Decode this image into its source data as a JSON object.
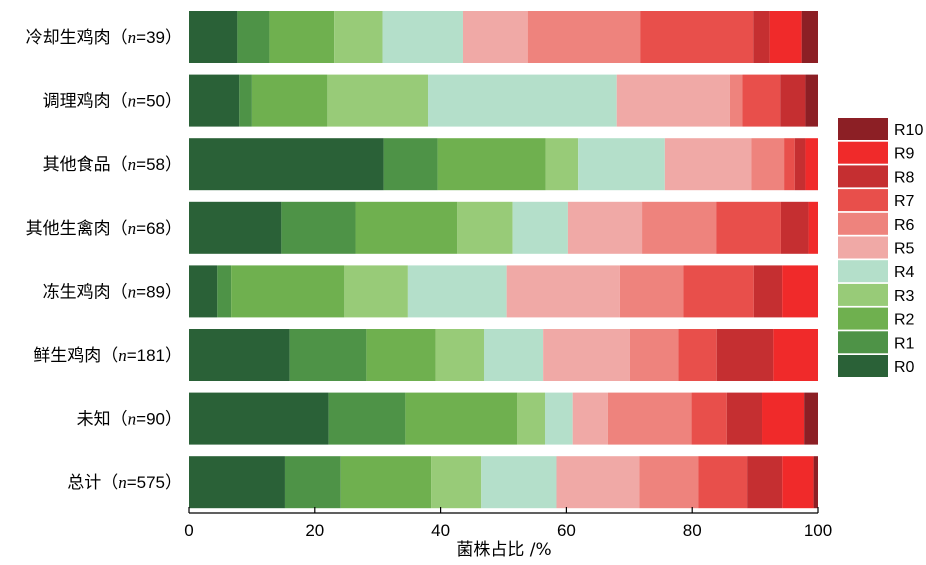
{
  "chart_data": {
    "type": "bar",
    "orientation": "horizontal",
    "stacked": true,
    "title": "",
    "xlabel": "菌株占比 /%",
    "ylabel": "",
    "xlim": [
      0,
      100
    ],
    "xticks": [
      0,
      20,
      40,
      60,
      80,
      100
    ],
    "grid": false,
    "legend_position": "right",
    "categories": [
      {
        "name": "冷却生鸡肉",
        "n": "39"
      },
      {
        "name": "调理鸡肉",
        "n": "50"
      },
      {
        "name": "其他食品",
        "n": "58"
      },
      {
        "name": "其他生禽肉",
        "n": "68"
      },
      {
        "name": "冻生鸡肉",
        "n": "89"
      },
      {
        "name": "鲜生鸡肉",
        "n": "181"
      },
      {
        "name": "未知",
        "n": "90"
      },
      {
        "name": "总计",
        "n": "575"
      }
    ],
    "series": [
      {
        "name": "R0",
        "color": "#2a6137",
        "values": [
          7.7,
          8.0,
          31.0,
          14.7,
          4.5,
          16.0,
          22.2,
          15.3
        ]
      },
      {
        "name": "R1",
        "color": "#4e9347",
        "values": [
          5.1,
          2.0,
          8.6,
          11.8,
          2.2,
          12.2,
          12.2,
          8.9
        ]
      },
      {
        "name": "R2",
        "color": "#6fb04f",
        "values": [
          10.3,
          12.0,
          17.2,
          16.2,
          18.0,
          11.0,
          17.8,
          14.4
        ]
      },
      {
        "name": "R3",
        "color": "#98cb78",
        "values": [
          7.7,
          16.0,
          5.2,
          8.8,
          10.1,
          7.7,
          4.4,
          8.0
        ]
      },
      {
        "name": "R4",
        "color": "#b4dfca",
        "values": [
          12.8,
          30.0,
          13.8,
          8.8,
          15.7,
          9.4,
          4.4,
          12.0
        ]
      },
      {
        "name": "R5",
        "color": "#f0a9a6",
        "values": [
          10.3,
          18.0,
          13.8,
          11.8,
          18.0,
          13.8,
          5.6,
          13.2
        ]
      },
      {
        "name": "R6",
        "color": "#ee837d",
        "values": [
          17.9,
          2.0,
          5.2,
          11.8,
          10.1,
          7.7,
          13.3,
          9.4
        ]
      },
      {
        "name": "R7",
        "color": "#e84f4b",
        "values": [
          18.0,
          6.0,
          1.7,
          10.3,
          11.2,
          6.1,
          5.6,
          7.8
        ]
      },
      {
        "name": "R8",
        "color": "#c52f31",
        "values": [
          2.6,
          4.0,
          1.7,
          4.4,
          4.5,
          9.0,
          5.6,
          5.6
        ]
      },
      {
        "name": "R9",
        "color": "#f02a2a",
        "values": [
          5.1,
          0.0,
          2.0,
          1.5,
          5.7,
          7.1,
          6.7,
          5.0
        ]
      },
      {
        "name": "R10",
        "color": "#8c1f25",
        "values": [
          2.6,
          2.0,
          0.0,
          0.0,
          0.0,
          0.0,
          2.2,
          0.7
        ]
      }
    ]
  }
}
